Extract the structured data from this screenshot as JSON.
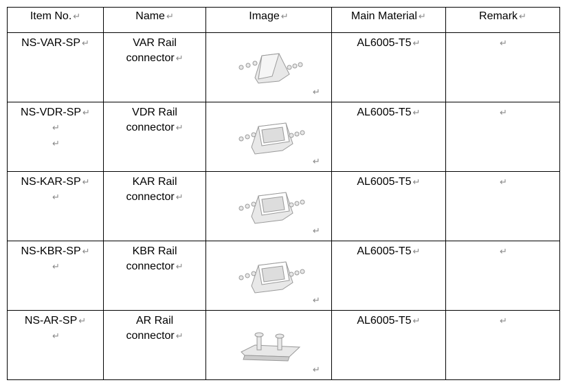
{
  "table": {
    "headers": [
      "Item No.",
      "Name",
      "Image",
      "Main Material",
      "Remark"
    ],
    "rows": [
      {
        "item_no": "NS-VAR-SP",
        "item_no_extra_returns": 0,
        "name": "VAR Rail connector",
        "material": "AL6005-T5",
        "remark": "",
        "image_type": "trapezoid"
      },
      {
        "item_no": "NS-VDR-SP",
        "item_no_extra_returns": 2,
        "name": "VDR Rail connector",
        "material": "AL6005-T5",
        "remark": "",
        "image_type": "channel"
      },
      {
        "item_no": "NS-KAR-SP",
        "item_no_extra_returns": 1,
        "name": "KAR Rail connector",
        "material": "AL6005-T5",
        "remark": "",
        "image_type": "channel"
      },
      {
        "item_no": "NS-KBR-SP",
        "item_no_extra_returns": 1,
        "name": "KBR Rail connector",
        "material": "AL6005-T5",
        "remark": "",
        "image_type": "channel"
      },
      {
        "item_no": "NS-AR-SP",
        "item_no_extra_returns": 1,
        "name": "AR Rail connector",
        "material": "AL6005-T5",
        "remark": "",
        "image_type": "flat"
      }
    ]
  },
  "colors": {
    "border": "#000000",
    "text": "#000000",
    "return_mark": "#888888",
    "background": "#ffffff",
    "image_line": "#999999",
    "image_fill": "#e8e8e8"
  },
  "return_symbol": "↵"
}
